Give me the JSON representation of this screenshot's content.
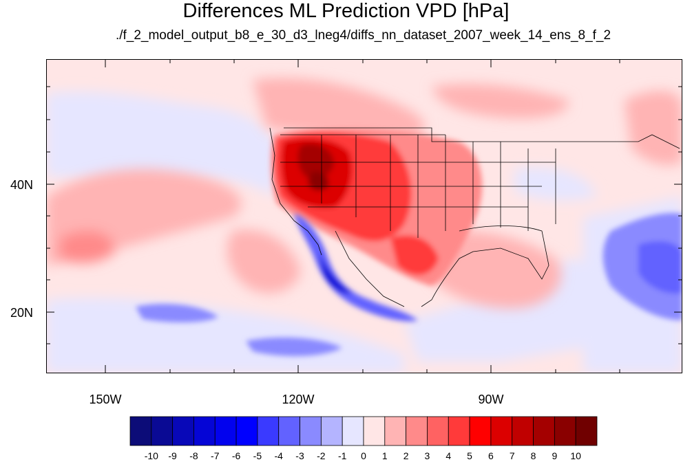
{
  "title": "Differences ML Prediction VPD [hPa]",
  "subtitle": "./f_2_model_output_b8_e_30_d3_lneg4/diffs_nn_dataset_2007_week_14_ens_8_f_2",
  "map": {
    "lat_labels": [
      "40N",
      "20N"
    ],
    "lon_labels": [
      "150W",
      "120W",
      "90W"
    ]
  },
  "colorbar": {
    "labels": [
      "-10",
      "-9",
      "-8",
      "-7",
      "-6",
      "-5",
      "-4",
      "-3",
      "-2",
      "-1",
      "0",
      "1",
      "2",
      "3",
      "4",
      "5",
      "6",
      "7",
      "8",
      "9",
      "10"
    ],
    "colors": [
      "#0c0c78",
      "#0a0a94",
      "#0808b8",
      "#0505d6",
      "#0202ee",
      "#0000ff",
      "#3a3aff",
      "#6262ff",
      "#8a8aff",
      "#b4b4ff",
      "#e6e6ff",
      "#ffe6e6",
      "#ffb4b4",
      "#ff8a8a",
      "#ff6262",
      "#ff3a3a",
      "#ff0000",
      "#dc0000",
      "#c00000",
      "#a40000",
      "#8a0000",
      "#700000"
    ]
  }
}
